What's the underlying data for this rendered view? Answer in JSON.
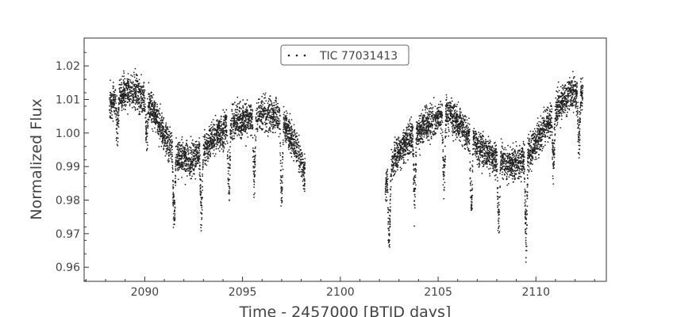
{
  "chart_data": {
    "type": "scatter",
    "title": "",
    "xlabel": "Time - 2457000 [BTJD days]",
    "ylabel": "Normalized Flux",
    "xlim": [
      2086.9,
      2113.6
    ],
    "ylim": [
      0.9558,
      1.0283
    ],
    "x_ticks": [
      2090,
      2095,
      2100,
      2105,
      2110
    ],
    "x_tick_labels": [
      "2090",
      "2095",
      "2100",
      "2105",
      "2110"
    ],
    "y_ticks": [
      0.96,
      0.97,
      0.98,
      0.99,
      1.0,
      1.01,
      1.02
    ],
    "y_tick_labels": [
      "0.96",
      "0.97",
      "0.98",
      "0.99",
      "1.00",
      "1.01",
      "1.02"
    ],
    "grid": false,
    "legend": {
      "position": "top-center",
      "entries": [
        "TIC 77031413"
      ]
    },
    "marker_color": "#222222",
    "series": [
      {
        "name": "TIC 77031413",
        "segments": [
          [
            2088.2,
            2098.2
          ],
          [
            2102.3,
            2112.4
          ]
        ],
        "trend_x": [
          2088.2,
          2089.0,
          2089.5,
          2090.3,
          2091.0,
          2091.7,
          2092.3,
          2093.0,
          2093.8,
          2094.5,
          2095.3,
          2096.0,
          2096.7,
          2097.3,
          2097.8,
          2098.2,
          2102.3,
          2102.8,
          2103.5,
          2104.3,
          2105.0,
          2105.6,
          2106.2,
          2107.0,
          2107.8,
          2108.5,
          2109.2,
          2109.8,
          2110.5,
          2111.2,
          2111.8,
          2112.4
        ],
        "trend_y": [
          1.009,
          1.012,
          1.0125,
          1.008,
          0.999,
          0.993,
          0.9915,
          0.995,
          1.0,
          1.003,
          1.004,
          1.0055,
          1.005,
          1.001,
          0.995,
          0.987,
          0.984,
          0.993,
          0.998,
          1.002,
          1.0045,
          1.0055,
          1.002,
          0.996,
          0.9925,
          0.9905,
          0.991,
          0.995,
          1.002,
          1.008,
          1.0125,
          1.011
        ],
        "scatter_amplitude": 0.0035,
        "dips": [
          {
            "x": 2088.6,
            "depth": 0.012
          },
          {
            "x": 2090.1,
            "depth": 0.013
          },
          {
            "x": 2091.5,
            "depth": 0.025
          },
          {
            "x": 2092.9,
            "depth": 0.022
          },
          {
            "x": 2094.3,
            "depth": 0.022
          },
          {
            "x": 2095.6,
            "depth": 0.022
          },
          {
            "x": 2097.0,
            "depth": 0.025
          },
          {
            "x": 2102.5,
            "depth": 0.022
          },
          {
            "x": 2103.8,
            "depth": 0.022
          },
          {
            "x": 2105.3,
            "depth": 0.024
          },
          {
            "x": 2106.7,
            "depth": 0.022
          },
          {
            "x": 2108.1,
            "depth": 0.022
          },
          {
            "x": 2109.5,
            "depth": 0.028
          },
          {
            "x": 2110.9,
            "depth": 0.018
          },
          {
            "x": 2112.2,
            "depth": 0.018
          }
        ],
        "dip_half_width": 0.09,
        "sample_count": 7000
      }
    ]
  }
}
